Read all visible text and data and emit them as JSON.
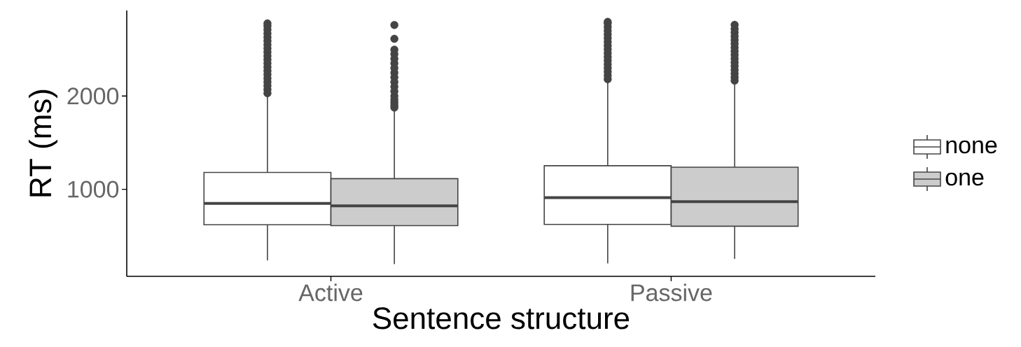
{
  "chart_data": {
    "type": "box",
    "xlabel": "Sentence structure",
    "ylabel": "RT (ms)",
    "categories": [
      "Active",
      "Passive"
    ],
    "ylim": [
      67,
      2917
    ],
    "yticks": [
      1000,
      2000
    ],
    "legend": "right",
    "marker": "circle",
    "grid": false,
    "series": [
      {
        "name": "none",
        "color": "#ffffff",
        "boxes": [
          {
            "low": 238,
            "q1": 620,
            "median": 849,
            "q3": 1181,
            "high": 2010,
            "outliers": [
              2030,
              2070,
              2110,
              2150,
              2190,
              2230,
              2270,
              2310,
              2350,
              2390,
              2430,
              2470,
              2510,
              2550,
              2590,
              2630,
              2670,
              2710,
              2750,
              2779
            ]
          },
          {
            "low": 205,
            "q1": 624,
            "median": 910,
            "q3": 1253,
            "high": 2157,
            "outliers": [
              2180,
              2220,
              2260,
              2300,
              2340,
              2380,
              2420,
              2460,
              2500,
              2540,
              2580,
              2620,
              2660,
              2700,
              2740,
              2780,
              2796
            ]
          }
        ]
      },
      {
        "name": "one",
        "color": "#cccccc",
        "boxes": [
          {
            "low": 198,
            "q1": 611,
            "median": 822,
            "q3": 1114,
            "high": 1860,
            "outliers": [
              1876,
              1900,
              1930,
              1960,
              2000,
              2050,
              2100,
              2150,
              2200,
              2250,
              2300,
              2350,
              2400,
              2450,
              2497,
              2614,
              2762
            ]
          },
          {
            "low": 254,
            "q1": 604,
            "median": 867,
            "q3": 1237,
            "high": 2143,
            "outliers": [
              2165,
              2200,
              2240,
              2280,
              2320,
              2360,
              2400,
              2440,
              2480,
              2520,
              2560,
              2600,
              2640,
              2680,
              2720,
              2764
            ]
          }
        ]
      }
    ]
  }
}
